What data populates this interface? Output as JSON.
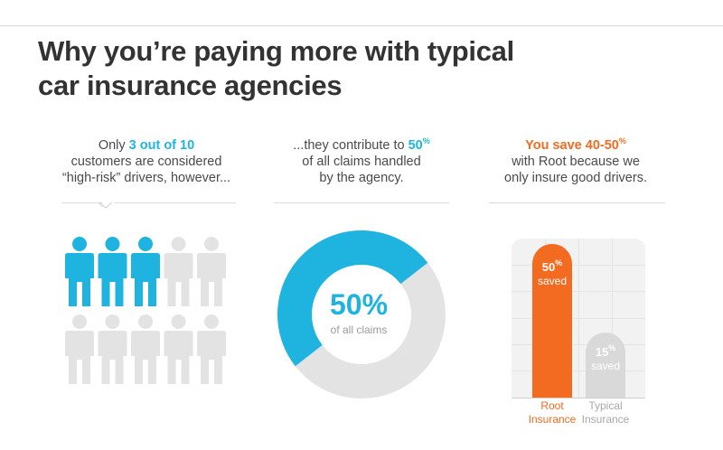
{
  "title": {
    "line1": "Why you’re paying more with typical",
    "line2": "car insurance agencies"
  },
  "col1": {
    "pre": "Only ",
    "highlight": "3 out of 10",
    "line2": "customers are considered",
    "line3": "“high-risk” drivers, however..."
  },
  "col2": {
    "pre": "...they contribute to ",
    "highlight": "50",
    "highlight_sup": "%",
    "line2": "of all claims handled",
    "line3": "by the agency."
  },
  "col3": {
    "highlight": "You save 40-50",
    "highlight_sup": "%",
    "line2": "with Root because we",
    "line3": "only insure good drivers."
  },
  "people": {
    "total": 10,
    "highlighted": 3,
    "highlight_color": "#1fb4e0",
    "base_color": "#e3e3e3"
  },
  "donut": {
    "percent": 50,
    "pct_label": "50%",
    "sub_label": "of all claims",
    "fill_color": "#1fb4e0",
    "track_color": "#e3e3e3"
  },
  "chart_data": {
    "type": "bar",
    "categories": [
      "Root Insurance",
      "Typical Insurance"
    ],
    "values": [
      50,
      15
    ],
    "unit": "% saved",
    "colors": [
      "#f26b21",
      "#d9d9d9"
    ],
    "bars": [
      {
        "pct": "50",
        "sup": "%",
        "saved": "saved",
        "label1": "Root",
        "label2": "Insurance"
      },
      {
        "pct": "15",
        "sup": "%",
        "saved": "saved",
        "label1": "Typical",
        "label2": "Insurance"
      }
    ]
  }
}
